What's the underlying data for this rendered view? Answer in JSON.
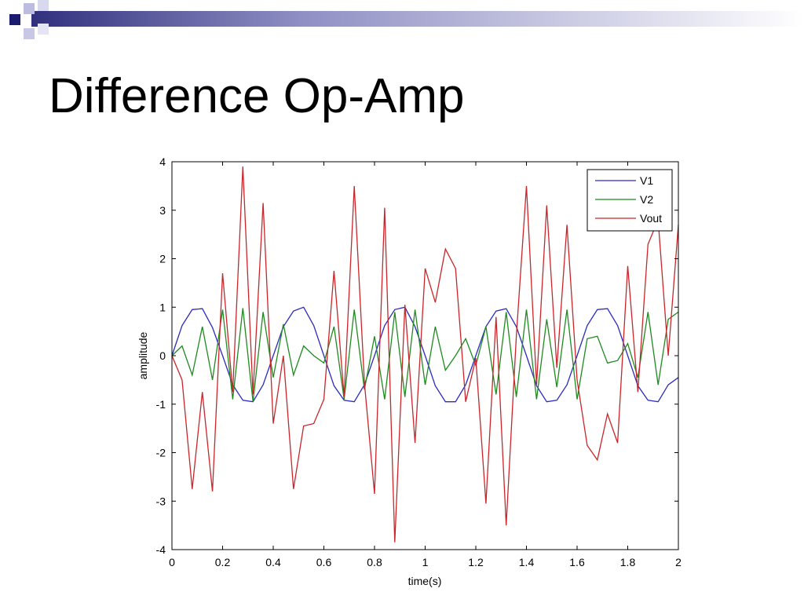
{
  "slide": {
    "title": "Difference Op-Amp"
  },
  "chart_data": {
    "type": "line",
    "xlabel": "time(s)",
    "ylabel": "amplitude",
    "xlim": [
      0,
      2
    ],
    "ylim": [
      -4,
      4
    ],
    "xticks": [
      0,
      0.2,
      0.4,
      0.6,
      0.8,
      1,
      1.2,
      1.4,
      1.6,
      1.8,
      2
    ],
    "xtick_labels": [
      "0",
      "0.2",
      "0.4",
      "0.6",
      "0.8",
      "1",
      "1.2",
      "1.4",
      "1.6",
      "1.8",
      "2"
    ],
    "yticks": [
      -4,
      -3,
      -2,
      -1,
      0,
      1,
      2,
      3,
      4
    ],
    "ytick_labels": [
      "-4",
      "-3",
      "-2",
      "-1",
      "0",
      "1",
      "2",
      "3",
      "4"
    ],
    "grid": false,
    "legend_position": "top-right",
    "x": [
      0,
      0.04,
      0.08,
      0.12,
      0.16,
      0.2,
      0.24,
      0.28,
      0.32,
      0.36,
      0.4,
      0.44,
      0.48,
      0.52,
      0.56,
      0.6,
      0.64,
      0.68,
      0.72,
      0.76,
      0.8,
      0.84,
      0.88,
      0.92,
      0.96,
      1.0,
      1.04,
      1.08,
      1.12,
      1.16,
      1.2,
      1.24,
      1.28,
      1.32,
      1.36,
      1.4,
      1.44,
      1.48,
      1.52,
      1.56,
      1.6,
      1.64,
      1.68,
      1.72,
      1.76,
      1.8,
      1.84,
      1.88,
      1.92,
      1.96,
      2.0
    ],
    "series": [
      {
        "name": "V1",
        "color": "#2b2bbd",
        "values": [
          0.0,
          0.62,
          0.95,
          0.97,
          0.58,
          0.0,
          -0.6,
          -0.92,
          -0.95,
          -0.6,
          0.0,
          0.6,
          0.92,
          1.0,
          0.62,
          0.0,
          -0.62,
          -0.92,
          -0.95,
          -0.6,
          0.0,
          0.62,
          0.95,
          1.0,
          0.6,
          0.0,
          -0.62,
          -0.95,
          -0.95,
          -0.6,
          0.0,
          0.6,
          0.92,
          0.97,
          0.6,
          0.0,
          -0.62,
          -0.95,
          -0.92,
          -0.6,
          0.0,
          0.62,
          0.95,
          0.97,
          0.62,
          0.0,
          -0.62,
          -0.92,
          -0.95,
          -0.6,
          -0.45
        ]
      },
      {
        "name": "V2",
        "color": "#1f8a1f",
        "values": [
          0.0,
          0.2,
          -0.4,
          0.6,
          -0.5,
          0.95,
          -0.9,
          0.98,
          -0.95,
          0.9,
          -0.45,
          0.65,
          -0.4,
          0.2,
          0.0,
          -0.15,
          0.6,
          -0.9,
          0.95,
          -0.7,
          0.4,
          -0.9,
          0.9,
          -0.85,
          0.95,
          -0.6,
          0.6,
          -0.3,
          0.0,
          0.35,
          -0.2,
          0.6,
          -0.8,
          0.9,
          -0.85,
          0.95,
          -0.9,
          0.75,
          -0.65,
          0.95,
          -0.9,
          0.35,
          0.4,
          -0.15,
          -0.1,
          0.25,
          -0.45,
          0.9,
          -0.6,
          0.75,
          0.9
        ]
      },
      {
        "name": "Vout",
        "color": "#c8262b",
        "values": [
          0.0,
          -0.5,
          -2.75,
          -0.75,
          -2.8,
          1.7,
          -0.75,
          3.9,
          -0.8,
          3.15,
          -1.4,
          0.0,
          -2.75,
          -1.45,
          -1.4,
          -0.9,
          1.75,
          -0.85,
          3.5,
          -0.55,
          -2.85,
          3.05,
          -3.85,
          1.05,
          -1.8,
          1.8,
          1.1,
          2.2,
          1.8,
          -0.95,
          -0.05,
          -3.05,
          0.8,
          -3.5,
          0.4,
          3.5,
          -0.6,
          3.1,
          -0.25,
          2.7,
          -0.5,
          -1.85,
          -2.15,
          -1.2,
          -1.8,
          1.85,
          -0.75,
          2.3,
          2.8,
          0.0,
          2.7
        ]
      }
    ]
  }
}
